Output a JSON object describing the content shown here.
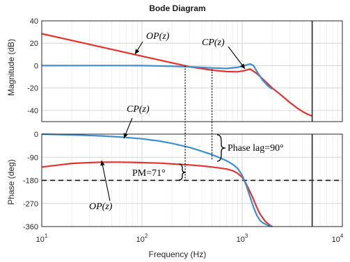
{
  "chart_data": {
    "type": "line",
    "title": "Bode Diagram",
    "xlabel": "Frequency  (Hz)",
    "x_scale": "log",
    "xlim": [
      10,
      10000
    ],
    "x_tick_labels": [
      {
        "base": "10",
        "exp": "1",
        "value": 10
      },
      {
        "base": "10",
        "exp": "2",
        "value": 100
      },
      {
        "base": "10",
        "exp": "3",
        "value": 1000
      },
      {
        "base": "10",
        "exp": "4",
        "value": 10000
      }
    ],
    "grid": true,
    "panels": [
      {
        "ylabel": "Magnitude (dB)",
        "ylim": [
          -50,
          40
        ],
        "yticks": [
          40,
          20,
          0,
          -20,
          -40
        ],
        "ytick_labels": [
          "40",
          "20",
          "0",
          "-20",
          "-40"
        ],
        "series": [
          {
            "name": "OP(z)",
            "color": "#e8312d",
            "x": [
              10,
              20,
              50,
              100,
              200,
              300,
              500,
              700,
              900,
              1050,
              1200,
              1400,
              1700,
              2000,
              2500,
              3000,
              3500,
              4000,
              4500,
              5000
            ],
            "y": [
              28.5,
              22.5,
              14.5,
              8.5,
              2.5,
              -1,
              -4,
              -5.3,
              -5.5,
              -4.5,
              -3,
              -7,
              -14,
              -20,
              -27,
              -33,
              -37.5,
              -41,
              -43.5,
              -45
            ]
          },
          {
            "name": "CP(z)",
            "color": "#3a8fd4",
            "x": [
              10,
              30,
              60,
              100,
              200,
              300,
              500,
              700,
              900,
              1000,
              1100,
              1200,
              1300,
              1400,
              1600,
              1800,
              2000
            ],
            "y": [
              0,
              0.1,
              0.1,
              0,
              -0.5,
              -1,
              -2,
              -2.5,
              -1.5,
              -0.5,
              0.5,
              1.5,
              0,
              -5,
              -13,
              -18,
              -21
            ]
          }
        ]
      },
      {
        "ylabel": "Phase (deg)",
        "ylim": [
          -360,
          0
        ],
        "yticks": [
          0,
          -90,
          -180,
          -270,
          -360
        ],
        "ytick_labels": [
          "0",
          "-90",
          "-180",
          "-270",
          "-360"
        ],
        "series": [
          {
            "name": "OP(z)",
            "color": "#e8312d",
            "x": [
              10,
              15,
              20,
              30,
              40,
              60,
              80,
              100,
              150,
              200,
              300,
              400,
              500,
              600,
              700,
              800,
              900,
              1000,
              1100,
              1200,
              1300,
              1400,
              1500,
              1700,
              1900,
              2000
            ],
            "y": [
              -128,
              -120,
              -114,
              -111,
              -109,
              -109,
              -110,
              -111,
              -113,
              -116,
              -120,
              -124,
              -128,
              -132,
              -136,
              -142,
              -152,
              -168,
              -195,
              -225,
              -255,
              -285,
              -310,
              -340,
              -355,
              -360
            ]
          },
          {
            "name": "CP(z)",
            "color": "#3a8fd4",
            "x": [
              10,
              20,
              40,
              60,
              100,
              150,
              200,
              300,
              400,
              500,
              600,
              700,
              800,
              900,
              1000,
              1100,
              1200,
              1300,
              1400,
              1500,
              1600,
              1800,
              2000
            ],
            "y": [
              0,
              -3,
              -7,
              -11,
              -18,
              -27,
              -36,
              -52,
              -67,
              -80,
              -92,
              -104,
              -117,
              -133,
              -160,
              -200,
              -245,
              -285,
              -315,
              -335,
              -345,
              -355,
              -360
            ]
          }
        ]
      }
    ],
    "reference_lines": {
      "phase_minus_180": -180,
      "vertical_frequency_markers": [
        270,
        500
      ],
      "vertical_solid_marker": 5000
    },
    "annotations": {
      "op_mag_label": "OP(z)",
      "cp_mag_label": "CP(z)",
      "cp_phase_label": "CP(z)",
      "op_phase_label": "OP(z)",
      "phase_lag": "Phase lag=90°",
      "pm": "PM=71°"
    }
  }
}
